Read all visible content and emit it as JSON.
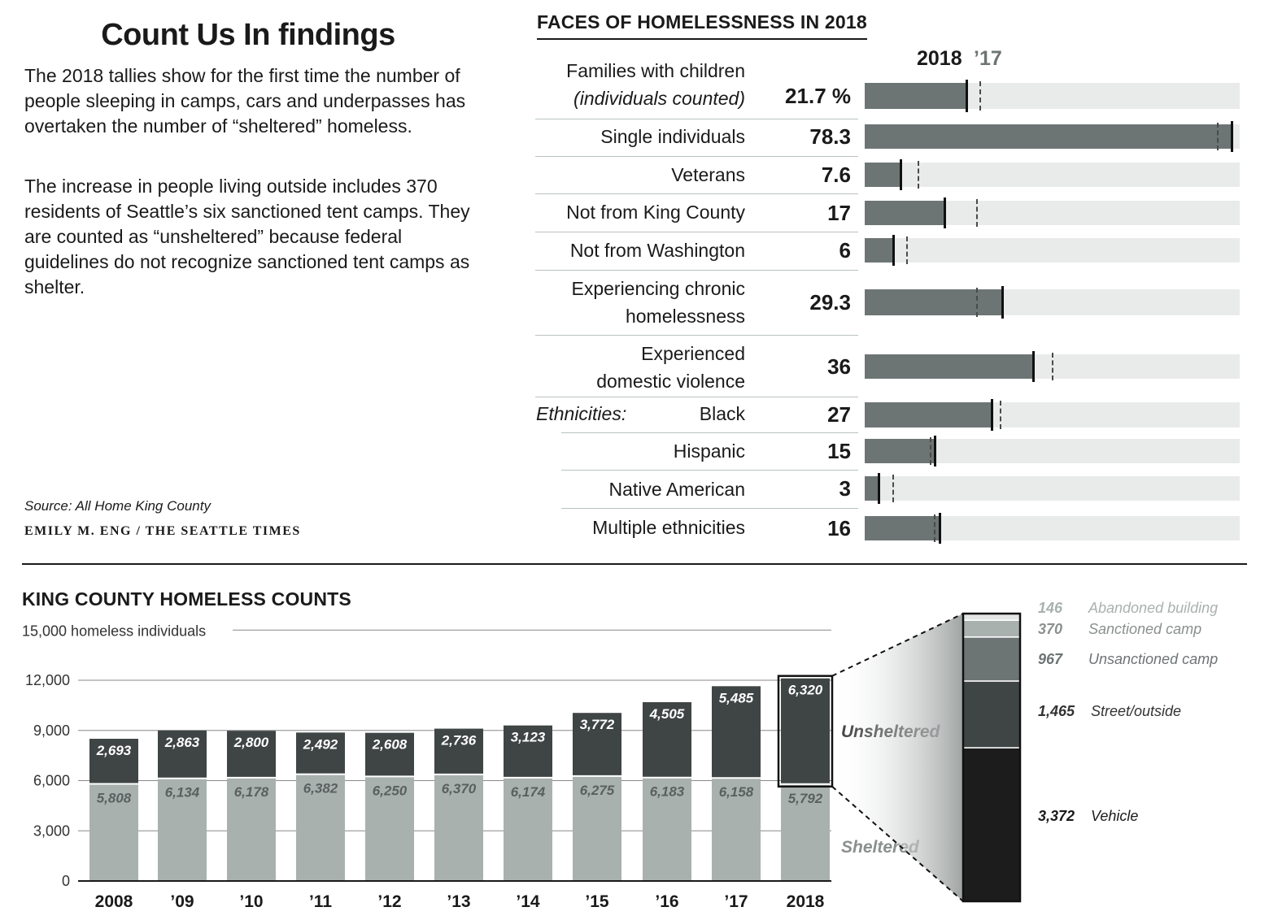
{
  "intro": {
    "title": "Count Us In findings",
    "paragraph1": "The 2018 tallies show for the first time the number of people sleeping in camps, cars and underpasses has overtaken the number of “sheltered” homeless.",
    "paragraph2": "The increase in people living outside includes 370 residents of Seattle’s six sanctioned tent camps. They are counted as “unsheltered” because federal guidelines do not recognize sanctioned tent camps as shelter.",
    "source": "Source: All Home King County",
    "credit": "EMILY M. ENG / THE SEATTLE TIMES"
  },
  "colors": {
    "sheltered": "#a9b1ae",
    "unsheltered": "#3f4444",
    "face_bar": "#6d7474",
    "face_track": "#e9ebea",
    "abandoned_building": "#e3e6e5",
    "sanctioned_camp": "#a9b1ae",
    "unsanctioned_camp": "#6d7474",
    "street_outside": "#3f4444",
    "vehicle": "#1c1c1c"
  },
  "chart_data": [
    {
      "type": "bar",
      "title": "FACES OF HOMELESSNESS IN 2018",
      "legend": {
        "current": "2018",
        "previous": "’17"
      },
      "xlim": [
        0,
        80
      ],
      "group_label": "Ethnicities:",
      "rows": [
        {
          "label_line1": "Families with children",
          "label_line2": "(individuals counted)",
          "value_label": "21.7 %",
          "value": 21.7,
          "prev": 24.6
        },
        {
          "label_line1": "Single individuals",
          "label_line2": "",
          "value_label": "78.3",
          "value": 78.3,
          "prev": 75.4
        },
        {
          "label_line1": "Veterans",
          "label_line2": "",
          "value_label": "7.6",
          "value": 7.6,
          "prev": 11.5
        },
        {
          "label_line1": "Not from King County",
          "label_line2": "",
          "value_label": "17",
          "value": 17,
          "prev": 24
        },
        {
          "label_line1": "Not from Washington",
          "label_line2": "",
          "value_label": "6",
          "value": 6,
          "prev": 9
        },
        {
          "label_line1": "Experiencing chronic",
          "label_line2": "homelessness",
          "value_label": "29.3",
          "value": 29.3,
          "prev": 24
        },
        {
          "label_line1": "Experienced",
          "label_line2": "domestic violence",
          "value_label": "36",
          "value": 36,
          "prev": 40
        },
        {
          "label_line1": "Black",
          "label_line2": "",
          "value_label": "27",
          "value": 27,
          "prev": 29
        },
        {
          "label_line1": "Hispanic",
          "label_line2": "",
          "value_label": "15",
          "value": 15,
          "prev": 14
        },
        {
          "label_line1": "Native American",
          "label_line2": "",
          "value_label": "3",
          "value": 3,
          "prev": 6
        },
        {
          "label_line1": "Multiple ethnicities",
          "label_line2": "",
          "value_label": "16",
          "value": 16,
          "prev": 15
        }
      ]
    },
    {
      "type": "bar",
      "stacked": true,
      "title": "KING COUNTY HOMELESS COUNTS",
      "ylabel": "15,000 homeless individuals",
      "ylim": [
        0,
        15000
      ],
      "yticks": [
        0,
        3000,
        6000,
        9000,
        12000
      ],
      "ytick_labels": [
        "0",
        "3,000",
        "6,000",
        "9,000",
        "12,000"
      ],
      "grid": true,
      "categories": [
        "2008",
        "’09",
        "’10",
        "’11",
        "’12",
        "’13",
        "’14",
        "’15",
        "’16",
        "’17",
        "2018"
      ],
      "series": [
        {
          "name": "Sheltered",
          "values": [
            5808,
            6134,
            6178,
            6382,
            6250,
            6370,
            6174,
            6275,
            6183,
            6158,
            5792
          ],
          "labels": [
            "5,808",
            "6,134",
            "6,178",
            "6,382",
            "6,250",
            "6,370",
            "6,174",
            "6,275",
            "6,183",
            "6,158",
            "5,792"
          ]
        },
        {
          "name": "Unsheltered",
          "values": [
            2693,
            2863,
            2800,
            2492,
            2608,
            2736,
            3123,
            3772,
            4505,
            5485,
            6320
          ],
          "labels": [
            "2,693",
            "2,863",
            "2,800",
            "2,492",
            "2,608",
            "2,736",
            "3,123",
            "3,772",
            "4,505",
            "5,485",
            "6,320"
          ]
        }
      ]
    },
    {
      "type": "bar",
      "stacked": true,
      "total": 6320,
      "segments": [
        {
          "name": "Abandoned building",
          "value": 146,
          "label": "146"
        },
        {
          "name": "Sanctioned camp",
          "value": 370,
          "label": "370"
        },
        {
          "name": "Unsanctioned camp",
          "value": 967,
          "label": "967"
        },
        {
          "name": "Street/outside",
          "value": 1465,
          "label": "1,465"
        },
        {
          "name": "Vehicle",
          "value": 3372,
          "label": "3,372"
        }
      ]
    }
  ]
}
